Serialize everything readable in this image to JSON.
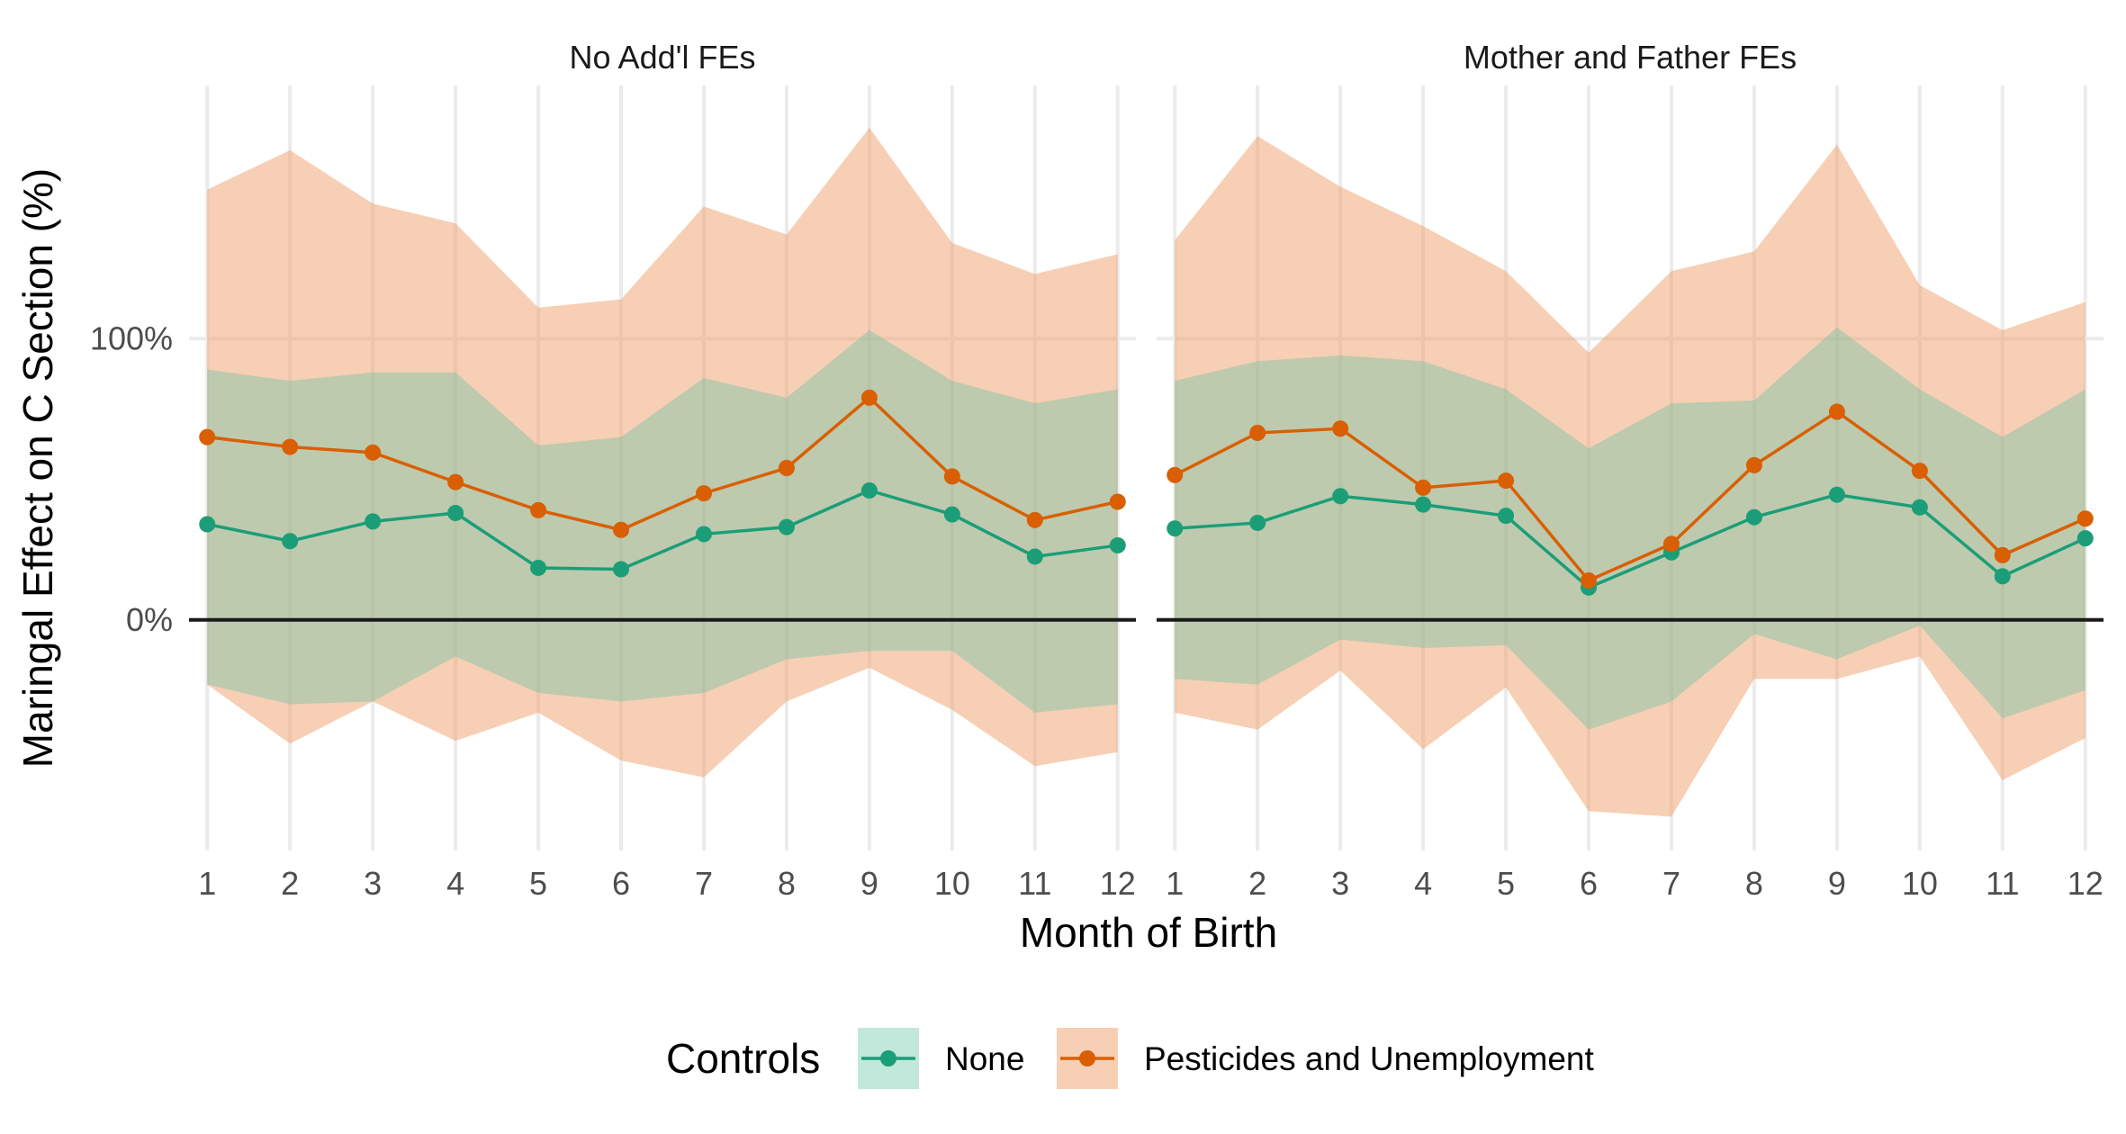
{
  "chart_data": {
    "type": "line",
    "xlabel": "Month of Birth",
    "ylabel": "Maringal Effect on C Section (%)",
    "x_ticks": [
      "1",
      "2",
      "3",
      "4",
      "5",
      "6",
      "7",
      "8",
      "9",
      "10",
      "11",
      "12"
    ],
    "y_ticks": [
      {
        "value": 0,
        "label": "0%"
      },
      {
        "value": 100,
        "label": "100%"
      }
    ],
    "xlim": [
      0.78,
      12.22
    ],
    "ylim": [
      -82,
      190
    ],
    "grid": true,
    "reference_line_y": 0,
    "legend": {
      "title": "Controls",
      "position": "bottom",
      "entries": [
        {
          "label": "None",
          "color": "#1b9e77"
        },
        {
          "label": "Pesticides and Unemployment",
          "color": "#d95f02"
        }
      ]
    },
    "panels": [
      {
        "title": "No Add'l FEs",
        "x": [
          1,
          2,
          3,
          4,
          5,
          6,
          7,
          8,
          9,
          10,
          11,
          12
        ],
        "series": [
          {
            "name": "None",
            "color": "#1b9e77",
            "values": [
              34,
              28,
              35,
              38,
              18.5,
              18,
              30.5,
              33,
              46,
              37.5,
              22.5,
              26.5
            ],
            "lower": [
              -23,
              -30,
              -29,
              -13,
              -26,
              -29,
              -26,
              -14,
              -11,
              -11,
              -33,
              -30
            ],
            "upper": [
              89,
              85,
              88,
              88,
              62,
              65,
              86,
              79,
              103,
              85,
              77,
              82
            ]
          },
          {
            "name": "Pesticides and Unemployment",
            "color": "#d95f02",
            "values": [
              65,
              61.5,
              59.5,
              49,
              39,
              32,
              45,
              54,
              79,
              51,
              35.5,
              42
            ],
            "lower": [
              -23,
              -44,
              -29,
              -43,
              -33,
              -50,
              -56,
              -29,
              -17,
              -32,
              -52,
              -47
            ],
            "upper": [
              153,
              167,
              148,
              141,
              111,
              114,
              147,
              137,
              175,
              134,
              123,
              130
            ]
          }
        ]
      },
      {
        "title": "Mother and Father FEs",
        "x": [
          1,
          2,
          3,
          4,
          5,
          6,
          7,
          8,
          9,
          10,
          11,
          12
        ],
        "series": [
          {
            "name": "None",
            "color": "#1b9e77",
            "values": [
              32.5,
              34.5,
              44,
              41,
              37,
              11.5,
              24,
              36.5,
              44.5,
              40,
              15.5,
              29
            ],
            "lower": [
              -21,
              -23,
              -7,
              -10,
              -9,
              -39,
              -29,
              -5,
              -14,
              -2,
              -35,
              -25
            ],
            "upper": [
              85,
              92,
              94,
              92,
              82,
              61,
              77,
              78,
              104,
              82,
              65,
              82
            ]
          },
          {
            "name": "Pesticides and Unemployment",
            "color": "#d95f02",
            "values": [
              51.5,
              66.5,
              68,
              47,
              49.5,
              14,
              27,
              55,
              74,
              53,
              23,
              36
            ],
            "lower": [
              -33,
              -39,
              -18,
              -46,
              -24,
              -68,
              -70,
              -21,
              -21,
              -13,
              -57,
              -42
            ],
            "upper": [
              135,
              172,
              154,
              140,
              124,
              95,
              124,
              131,
              169,
              119,
              103,
              113
            ]
          }
        ]
      }
    ]
  }
}
